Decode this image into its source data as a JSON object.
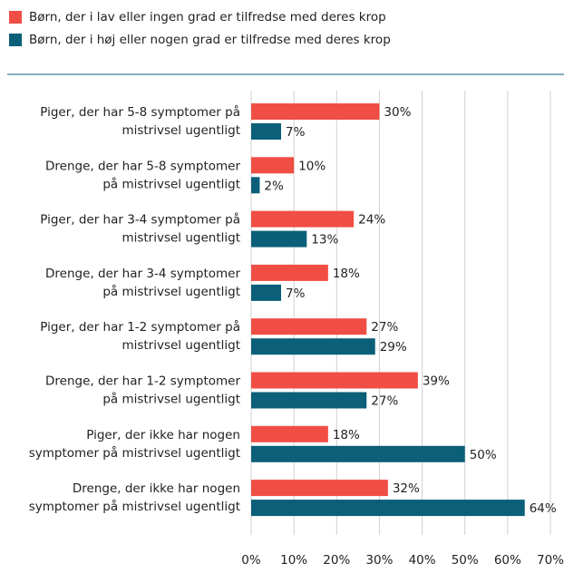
{
  "chart_data": {
    "type": "barh",
    "categories": [
      [
        "Piger, der har 5-8 symptomer på",
        "mistrivsel ugentligt"
      ],
      [
        "Drenge, der har 5-8 symptomer",
        "på mistrivsel ugentligt"
      ],
      [
        "Piger, der har 3-4 symptomer på",
        "mistrivsel ugentligt"
      ],
      [
        "Drenge, der har 3-4 symptomer",
        "på mistrivsel ugentligt"
      ],
      [
        "Piger, der har 1-2 symptomer på",
        "mistrivsel ugentligt"
      ],
      [
        "Drenge, der har 1-2 symptomer",
        "på mistrivsel ugentligt"
      ],
      [
        "Piger, der ikke har nogen",
        "symptomer på mistrivsel ugentligt"
      ],
      [
        "Drenge, der ikke har nogen",
        "symptomer på mistrivsel ugentligt"
      ]
    ],
    "series": [
      {
        "name": "Børn, der i lav eller ingen grad er tilfredse med deres krop",
        "color": "#f04e45",
        "values": [
          30,
          10,
          24,
          18,
          27,
          39,
          18,
          32
        ],
        "value_labels": [
          "30%",
          "10%",
          "24%",
          "18%",
          "27%",
          "39%",
          "18%",
          "32%"
        ]
      },
      {
        "name": "Børn, der i høj eller nogen grad er tilfredse med deres krop",
        "color": "#0b5f78",
        "values": [
          7,
          2,
          13,
          7,
          29,
          27,
          50,
          64
        ],
        "value_labels": [
          "7%",
          "2%",
          "13%",
          "7%",
          "29%",
          "27%",
          "50%",
          "64%"
        ]
      }
    ],
    "xlim": [
      0,
      70
    ],
    "xticks": [
      {
        "value": 0,
        "label": "0%"
      },
      {
        "value": 10,
        "label": "10%"
      },
      {
        "value": 20,
        "label": "20%"
      },
      {
        "value": 30,
        "label": "30%"
      },
      {
        "value": 40,
        "label": "40%"
      },
      {
        "value": 50,
        "label": "50%"
      },
      {
        "value": 60,
        "label": "60%"
      },
      {
        "value": 70,
        "label": "70%"
      }
    ],
    "grid": true,
    "legend": "top"
  }
}
